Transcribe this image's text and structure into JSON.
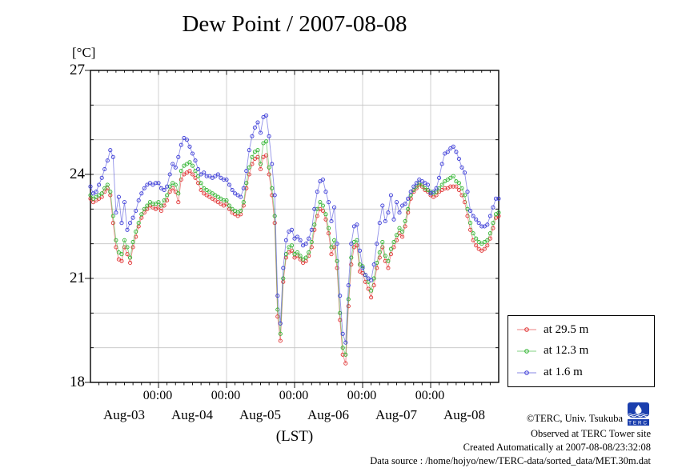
{
  "title": "Dew Point / 2007-08-08",
  "axes": {
    "y_unit_label": "[°C]",
    "y_ticks": [
      27,
      24,
      21,
      18
    ],
    "x_time_labels": [
      "00:00",
      "00:00",
      "00:00",
      "00:00",
      "00:00"
    ],
    "x_day_labels": [
      "Aug-03",
      "Aug-04",
      "Aug-05",
      "Aug-06",
      "Aug-07",
      "Aug-08"
    ],
    "x_axis_caption": "(LST)"
  },
  "legend": {
    "entries": [
      {
        "label": "at 29.5 m",
        "color": "#e03030"
      },
      {
        "label": "at 12.3 m",
        "color": "#2db32d"
      },
      {
        "label": "at 1.6 m",
        "color": "#3838d6"
      }
    ]
  },
  "credits": {
    "line1": "©TERC, Univ. Tsukuba",
    "line2": "Observed at TERC Tower site",
    "line3": "Created Automatically at 2007-08-08/23:32:08",
    "line4": "Data source : /home/hojyo/new/TERC-data/sorted_data/MET.30m.dat",
    "logo_text": "TERC"
  },
  "chart_data": {
    "type": "line",
    "title": "Dew Point / 2007-08-08",
    "ylabel": "[°C]",
    "xlabel": "(LST)",
    "ylim": [
      18,
      27
    ],
    "grid": true,
    "legend_position": "outside-right",
    "marker": "open-circle",
    "x_start": "2007-08-03 00:00",
    "x_end": "2007-08-09 00:00",
    "x_step_hours": 1,
    "grid_color": "#c4c4c4",
    "series": [
      {
        "name": "at 29.5 m",
        "color": "#e03030",
        "values": [
          23.3,
          23.2,
          23.25,
          23.3,
          23.35,
          23.5,
          23.6,
          23.4,
          22.6,
          21.9,
          21.55,
          21.5,
          21.9,
          21.7,
          21.45,
          21.9,
          22.2,
          22.5,
          22.75,
          22.9,
          23.0,
          23.1,
          23.05,
          23.0,
          23.05,
          22.95,
          23.1,
          23.25,
          23.5,
          23.6,
          23.5,
          23.2,
          23.85,
          24.0,
          24.05,
          24.1,
          24.0,
          23.9,
          23.75,
          23.55,
          23.45,
          23.4,
          23.35,
          23.3,
          23.25,
          23.2,
          23.15,
          23.1,
          23.15,
          23.0,
          22.9,
          22.85,
          22.8,
          22.85,
          23.1,
          23.6,
          24.0,
          24.3,
          24.45,
          24.5,
          24.15,
          24.5,
          24.55,
          24.0,
          23.4,
          22.6,
          19.9,
          19.2,
          20.9,
          21.6,
          21.75,
          21.8,
          21.6,
          21.65,
          21.55,
          21.45,
          21.5,
          21.65,
          21.9,
          22.4,
          22.8,
          23.0,
          22.95,
          22.7,
          22.3,
          21.7,
          21.9,
          21.3,
          19.8,
          18.8,
          18.55,
          20.2,
          21.4,
          21.9,
          21.95,
          21.2,
          21.15,
          20.9,
          20.7,
          20.45,
          20.8,
          21.3,
          21.6,
          21.9,
          21.5,
          21.3,
          21.7,
          21.9,
          22.1,
          22.3,
          22.2,
          22.5,
          22.9,
          23.3,
          23.5,
          23.6,
          23.7,
          23.65,
          23.55,
          23.5,
          23.4,
          23.35,
          23.4,
          23.5,
          23.55,
          23.6,
          23.6,
          23.65,
          23.65,
          23.65,
          23.55,
          23.4,
          23.2,
          22.8,
          22.4,
          22.1,
          21.95,
          21.85,
          21.8,
          21.85,
          21.95,
          22.15,
          22.45,
          22.75,
          22.8
        ]
      },
      {
        "name": "at 12.3 m",
        "color": "#2db32d",
        "values": [
          23.4,
          23.3,
          23.35,
          23.4,
          23.45,
          23.6,
          23.7,
          23.5,
          22.8,
          22.1,
          21.75,
          21.7,
          22.1,
          21.9,
          21.6,
          22.05,
          22.35,
          22.6,
          22.85,
          23.0,
          23.1,
          23.2,
          23.15,
          23.15,
          23.2,
          23.1,
          23.25,
          23.4,
          23.65,
          23.75,
          23.7,
          23.45,
          24.1,
          24.25,
          24.3,
          24.35,
          24.25,
          24.1,
          23.95,
          23.75,
          23.6,
          23.55,
          23.5,
          23.45,
          23.4,
          23.35,
          23.3,
          23.25,
          23.25,
          23.1,
          23.0,
          22.95,
          22.9,
          22.95,
          23.2,
          23.75,
          24.2,
          24.5,
          24.65,
          24.7,
          24.3,
          24.9,
          24.95,
          24.2,
          23.6,
          22.8,
          20.1,
          19.4,
          21.0,
          21.7,
          21.9,
          21.95,
          21.7,
          21.75,
          21.65,
          21.55,
          21.6,
          21.75,
          22.05,
          22.55,
          23.0,
          23.2,
          23.1,
          22.85,
          22.45,
          21.9,
          22.1,
          21.5,
          20.0,
          19.0,
          18.8,
          20.4,
          21.6,
          22.05,
          22.1,
          21.4,
          21.35,
          21.1,
          20.9,
          20.65,
          21.0,
          21.45,
          21.75,
          22.05,
          21.65,
          21.5,
          21.85,
          22.05,
          22.25,
          22.45,
          22.35,
          22.65,
          23.0,
          23.4,
          23.55,
          23.65,
          23.75,
          23.7,
          23.6,
          23.55,
          23.5,
          23.45,
          23.5,
          23.6,
          23.7,
          23.8,
          23.85,
          23.9,
          23.95,
          23.8,
          23.75,
          23.6,
          23.4,
          23.0,
          22.6,
          22.3,
          22.15,
          22.05,
          22.0,
          22.05,
          22.1,
          22.3,
          22.6,
          22.85,
          22.9
        ]
      },
      {
        "name": "at 1.6 m",
        "color": "#3838d6",
        "values": [
          23.65,
          23.45,
          23.5,
          23.7,
          23.9,
          24.15,
          24.4,
          24.7,
          24.5,
          22.9,
          23.35,
          22.6,
          23.2,
          22.4,
          22.6,
          22.75,
          22.95,
          23.25,
          23.45,
          23.6,
          23.7,
          23.75,
          23.7,
          23.75,
          23.75,
          23.6,
          23.55,
          23.65,
          24.0,
          24.3,
          24.2,
          24.5,
          24.85,
          25.05,
          25.0,
          24.8,
          24.6,
          24.4,
          24.15,
          24.0,
          24.05,
          23.95,
          23.95,
          23.9,
          23.95,
          24.0,
          23.9,
          23.85,
          23.85,
          23.7,
          23.55,
          23.45,
          23.4,
          23.35,
          23.6,
          24.1,
          24.7,
          25.1,
          25.35,
          25.5,
          25.2,
          25.65,
          25.7,
          25.1,
          24.3,
          23.4,
          20.5,
          19.7,
          21.3,
          22.1,
          22.35,
          22.4,
          22.15,
          22.2,
          22.1,
          21.95,
          22.0,
          22.15,
          22.4,
          23.0,
          23.5,
          23.8,
          23.85,
          23.5,
          23.2,
          22.65,
          23.05,
          22.0,
          20.5,
          19.4,
          19.15,
          20.8,
          22.0,
          22.5,
          22.55,
          21.8,
          21.3,
          21.1,
          21.0,
          20.95,
          21.4,
          22.0,
          22.6,
          23.1,
          22.65,
          22.9,
          23.4,
          22.7,
          23.2,
          22.9,
          23.1,
          23.15,
          23.3,
          23.5,
          23.65,
          23.75,
          23.85,
          23.8,
          23.75,
          23.7,
          23.45,
          23.5,
          23.6,
          23.9,
          24.3,
          24.6,
          24.65,
          24.75,
          24.8,
          24.65,
          24.45,
          24.2,
          24.05,
          23.5,
          22.95,
          22.8,
          22.7,
          22.6,
          22.5,
          22.5,
          22.55,
          22.8,
          23.05,
          23.3,
          23.3
        ]
      }
    ]
  }
}
